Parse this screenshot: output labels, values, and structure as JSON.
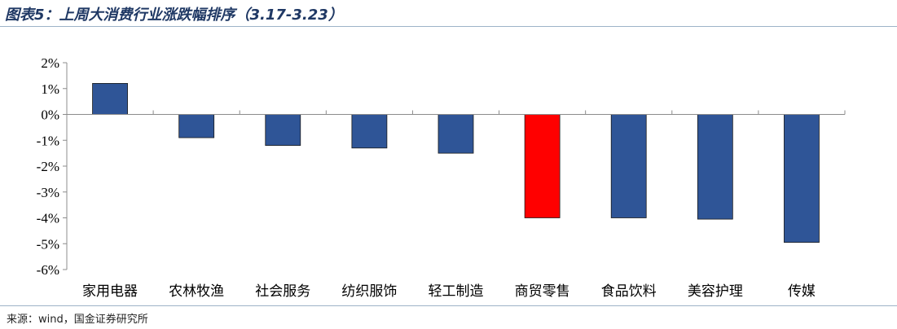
{
  "header": {
    "title": "图表5：上周大消费行业涨跌幅排序（3.17-3.23）"
  },
  "footer": {
    "source": "来源：wind，国金证券研究所"
  },
  "colors": {
    "bar_default": "#2f5597",
    "bar_highlight": "#ff0000",
    "title": "#1f3864",
    "rule": "#9db3c8"
  },
  "chart_data": {
    "type": "bar",
    "title": "上周大消费行业涨跌幅排序（3.17-3.23）",
    "xlabel": "",
    "ylabel": "",
    "categories": [
      "家用电器",
      "农林牧渔",
      "社会服务",
      "纺织服饰",
      "轻工制造",
      "商贸零售",
      "食品饮料",
      "美容护理",
      "传媒"
    ],
    "values": [
      1.2,
      -0.9,
      -1.2,
      -1.3,
      -1.5,
      -4.0,
      -4.0,
      -4.05,
      -4.95
    ],
    "highlight_index": 5,
    "ylim": [
      -6,
      2
    ],
    "yticks": [
      2,
      1,
      0,
      -1,
      -2,
      -3,
      -4,
      -5,
      -6
    ],
    "ytick_labels": [
      "2%",
      "1%",
      "0%",
      "-1%",
      "-2%",
      "-3%",
      "-4%",
      "-5%",
      "-6%"
    ],
    "grid": false,
    "legend": "none"
  }
}
